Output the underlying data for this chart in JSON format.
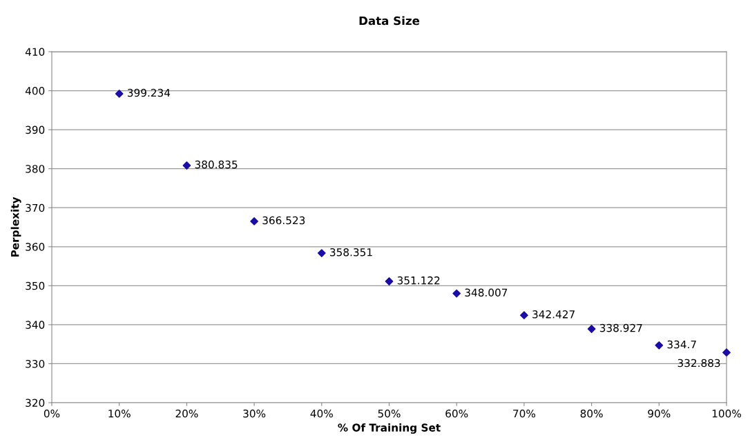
{
  "chart_data": {
    "type": "scatter",
    "title": "Data Size",
    "xlabel": "% Of Training Set",
    "ylabel": "Perplexity",
    "x": [
      10,
      20,
      30,
      40,
      50,
      60,
      70,
      80,
      90,
      100
    ],
    "series": [
      {
        "color": "#1a0ca8",
        "values": [
          399.234,
          380.835,
          366.523,
          358.351,
          351.122,
          348.007,
          342.427,
          338.927,
          334.7,
          332.883
        ]
      }
    ],
    "xlim": [
      0,
      100
    ],
    "xticks": [
      {
        "value": 0,
        "label": "0%"
      },
      {
        "value": 10,
        "label": "10%"
      },
      {
        "value": 20,
        "label": "20%"
      },
      {
        "value": 30,
        "label": "30%"
      },
      {
        "value": 40,
        "label": "40%"
      },
      {
        "value": 50,
        "label": "50%"
      },
      {
        "value": 60,
        "label": "60%"
      },
      {
        "value": 70,
        "label": "70%"
      },
      {
        "value": 80,
        "label": "80%"
      },
      {
        "value": 90,
        "label": "90%"
      },
      {
        "value": 100,
        "label": "100%"
      }
    ],
    "ylim": [
      320,
      410
    ],
    "yticks": [
      320,
      330,
      340,
      350,
      360,
      370,
      380,
      390,
      400,
      410
    ],
    "grid": "y",
    "marker": "diamond",
    "data_labels": true
  }
}
